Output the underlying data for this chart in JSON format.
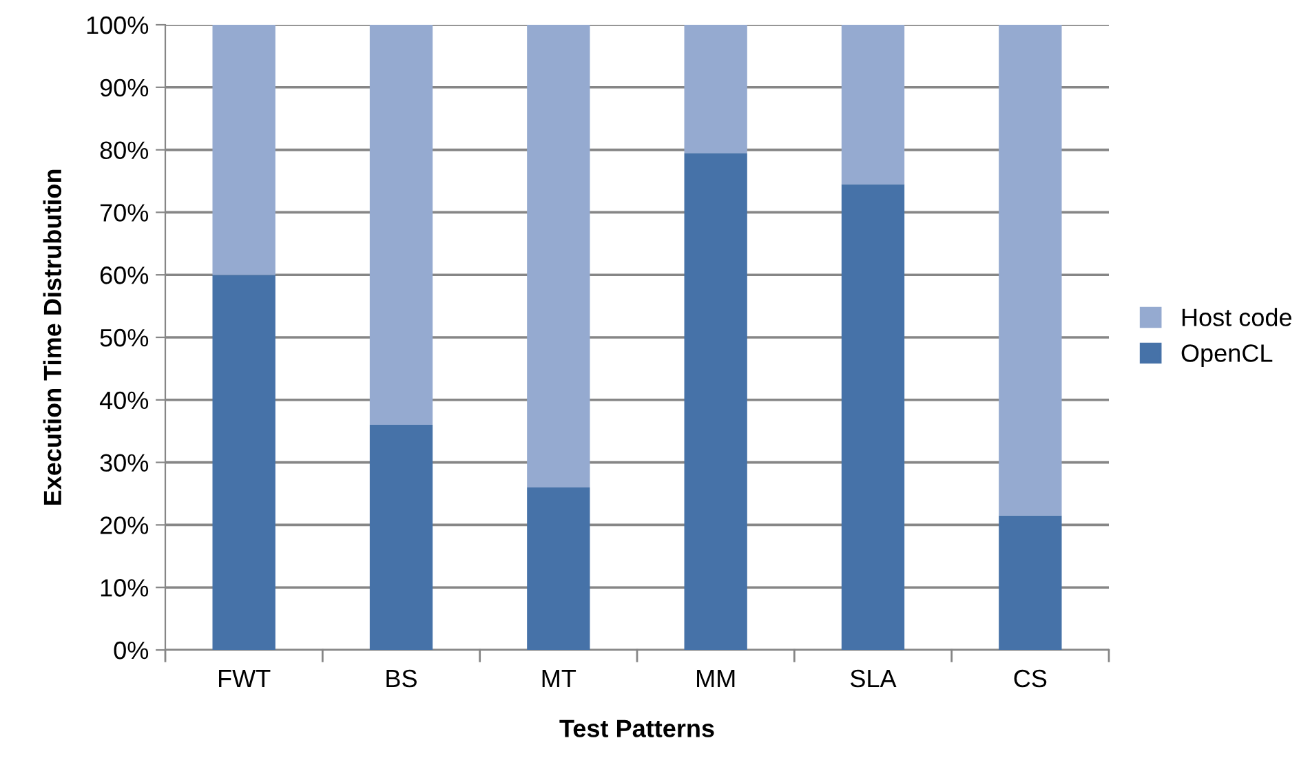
{
  "chart_data": {
    "type": "bar",
    "stacked": true,
    "xlabel": "Test Patterns",
    "ylabel": "Execution Time Distrubution",
    "categories": [
      "FWT",
      "BS",
      "MT",
      "MM",
      "SLA",
      "CS"
    ],
    "series": [
      {
        "name": "OpenCL",
        "color": "#4672a8",
        "values": [
          60,
          36,
          26,
          79.5,
          74.5,
          21.5
        ]
      },
      {
        "name": "Host code",
        "color": "#95aad0",
        "values": [
          40,
          64,
          74,
          20.5,
          25.5,
          78.5
        ]
      }
    ],
    "ylim": [
      0,
      100
    ],
    "yticks": [
      {
        "value": 0,
        "label": "0%"
      },
      {
        "value": 10,
        "label": "10%"
      },
      {
        "value": 20,
        "label": "20%"
      },
      {
        "value": 30,
        "label": "30%"
      },
      {
        "value": 40,
        "label": "40%"
      },
      {
        "value": 50,
        "label": "50%"
      },
      {
        "value": 60,
        "label": "60%"
      },
      {
        "value": 70,
        "label": "70%"
      },
      {
        "value": 80,
        "label": "80%"
      },
      {
        "value": 90,
        "label": "90%"
      },
      {
        "value": 100,
        "label": "100%"
      }
    ],
    "grid": "y",
    "legend": "right"
  }
}
